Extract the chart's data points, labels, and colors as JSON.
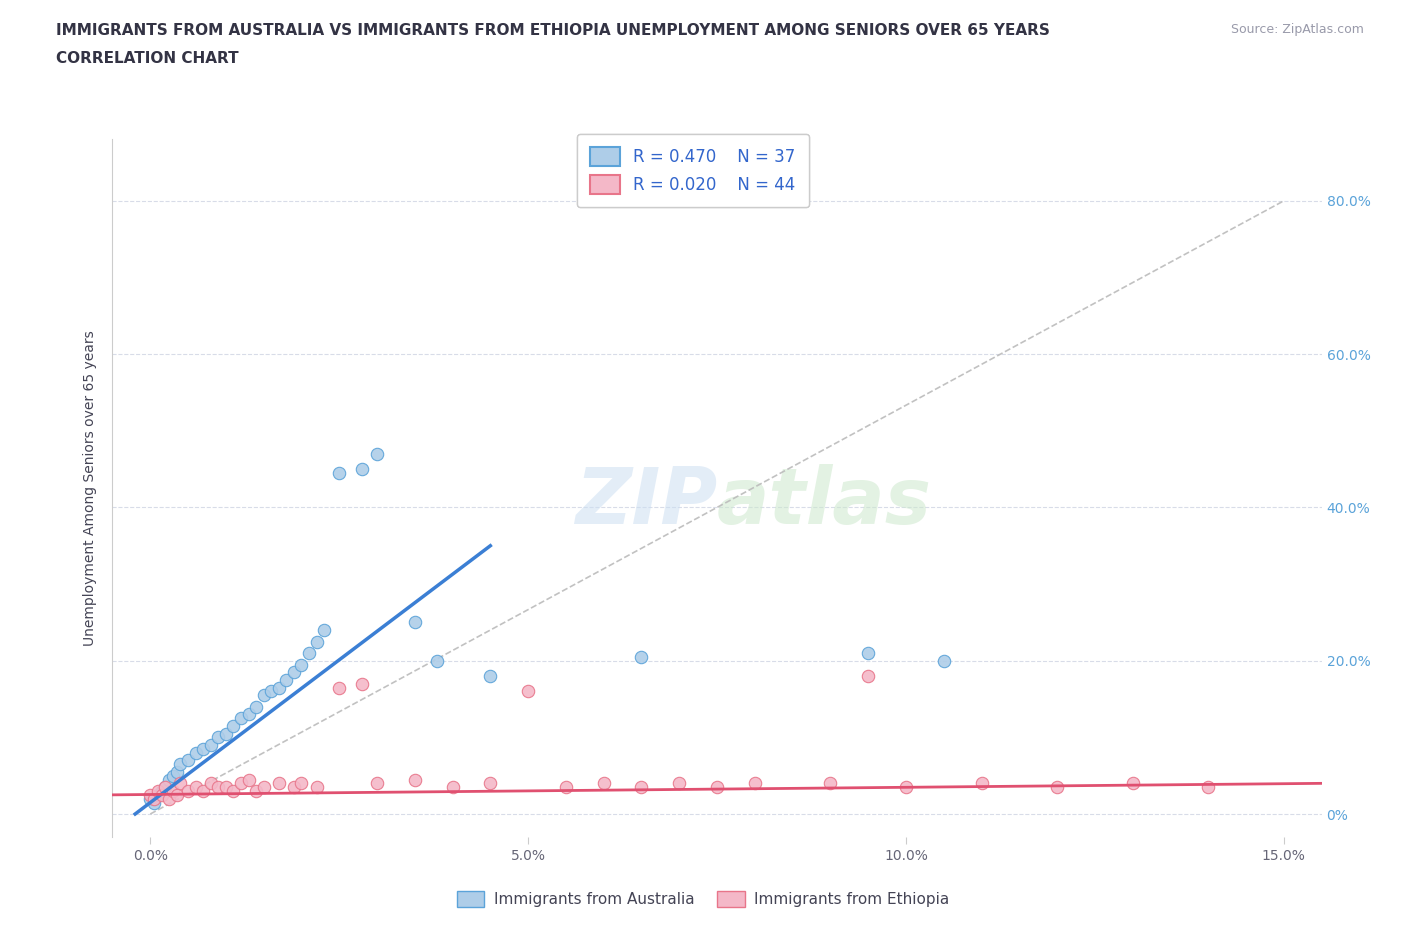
{
  "title_line1": "IMMIGRANTS FROM AUSTRALIA VS IMMIGRANTS FROM ETHIOPIA UNEMPLOYMENT AMONG SENIORS OVER 65 YEARS",
  "title_line2": "CORRELATION CHART",
  "source_text": "Source: ZipAtlas.com",
  "ylabel": "Unemployment Among Seniors over 65 years",
  "watermark": "ZIPatlas",
  "legend_label_australia": "Immigrants from Australia",
  "legend_label_ethiopia": "Immigrants from Ethiopia",
  "color_australia": "#aecde8",
  "color_ethiopia": "#f4b8c8",
  "edge_australia": "#5ba3d9",
  "edge_ethiopia": "#e8758a",
  "trendline_australia": "#3b7fd4",
  "trendline_ethiopia": "#e05070",
  "title_color": "#333344",
  "label_color": "#444455",
  "right_tick_color": "#5ba3d9",
  "grid_color": "#d8dce8",
  "aus_x": [
    0.0,
    0.05,
    0.1,
    0.15,
    0.2,
    0.25,
    0.3,
    0.35,
    0.4,
    0.5,
    0.6,
    0.7,
    0.8,
    0.9,
    1.0,
    1.1,
    1.2,
    1.3,
    1.4,
    1.5,
    1.6,
    1.7,
    1.8,
    1.9,
    2.0,
    2.1,
    2.2,
    2.3,
    2.5,
    2.8,
    3.0,
    3.5,
    3.8,
    4.5,
    6.5,
    9.5,
    10.5
  ],
  "aus_y": [
    2.0,
    1.5,
    2.5,
    3.0,
    3.5,
    4.5,
    5.0,
    5.5,
    6.5,
    7.0,
    8.0,
    8.5,
    9.0,
    10.0,
    10.5,
    11.5,
    12.5,
    13.0,
    14.0,
    15.5,
    16.0,
    16.5,
    17.5,
    18.5,
    19.5,
    21.0,
    22.5,
    24.0,
    44.5,
    45.0,
    47.0,
    25.0,
    20.0,
    18.0,
    20.5,
    21.0,
    20.0
  ],
  "eth_x": [
    0.0,
    0.05,
    0.1,
    0.15,
    0.2,
    0.25,
    0.3,
    0.35,
    0.4,
    0.5,
    0.6,
    0.7,
    0.8,
    0.9,
    1.0,
    1.1,
    1.2,
    1.3,
    1.4,
    1.5,
    1.7,
    1.9,
    2.0,
    2.2,
    2.5,
    2.8,
    3.0,
    3.5,
    4.0,
    4.5,
    5.0,
    5.5,
    6.0,
    6.5,
    7.0,
    7.5,
    8.0,
    9.0,
    9.5,
    10.0,
    11.0,
    12.0,
    13.0,
    14.0
  ],
  "eth_y": [
    2.5,
    2.0,
    3.0,
    2.5,
    3.5,
    2.0,
    3.0,
    2.5,
    4.0,
    3.0,
    3.5,
    3.0,
    4.0,
    3.5,
    3.5,
    3.0,
    4.0,
    4.5,
    3.0,
    3.5,
    4.0,
    3.5,
    4.0,
    3.5,
    16.5,
    17.0,
    4.0,
    4.5,
    3.5,
    4.0,
    16.0,
    3.5,
    4.0,
    3.5,
    4.0,
    3.5,
    4.0,
    4.0,
    18.0,
    3.5,
    4.0,
    3.5,
    4.0,
    3.5
  ],
  "ytick_vals": [
    0,
    20,
    40,
    60,
    80
  ],
  "ytick_labels_right": [
    "0%",
    "20.0%",
    "40.0%",
    "60.0%",
    "80.0%"
  ],
  "xtick_vals": [
    0,
    5,
    10,
    15
  ],
  "xtick_labels": [
    "0.0%",
    "5.0%",
    "10.0%",
    "15.0%"
  ]
}
